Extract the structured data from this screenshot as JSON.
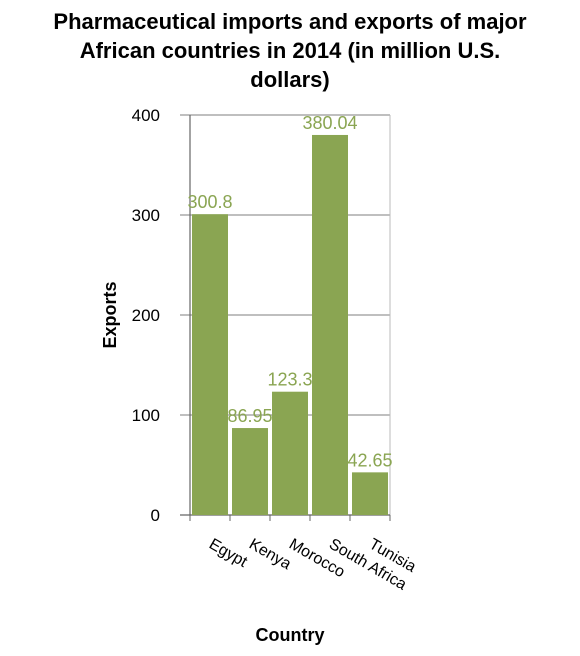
{
  "chart_data": {
    "type": "bar",
    "title": "Pharmaceutical imports and exports of major African countries in 2014 (in million U.S. dollars)",
    "title_lines": [
      "Pharmaceutical imports and exports of major",
      "African countries in 2014 (in million U.S.",
      "dollars)"
    ],
    "xlabel": "Country",
    "ylabel": "Exports",
    "categories": [
      "Egypt",
      "Kenya",
      "Morocco",
      "South Africa",
      "Tunisia"
    ],
    "values": [
      300.8,
      86.95,
      123.3,
      380.04,
      42.65
    ],
    "value_labels": [
      "300.8",
      "86.95",
      "123.3",
      "380.04",
      "42.65"
    ],
    "ylim": [
      0,
      400
    ],
    "yticks": [
      0,
      100,
      200,
      300,
      400
    ],
    "ytick_labels": [
      "0",
      "100",
      "200",
      "300",
      "400"
    ],
    "grid": true,
    "bar_color": "#8aa552",
    "label_color": "#8aa552",
    "grid_color": "#999999"
  }
}
